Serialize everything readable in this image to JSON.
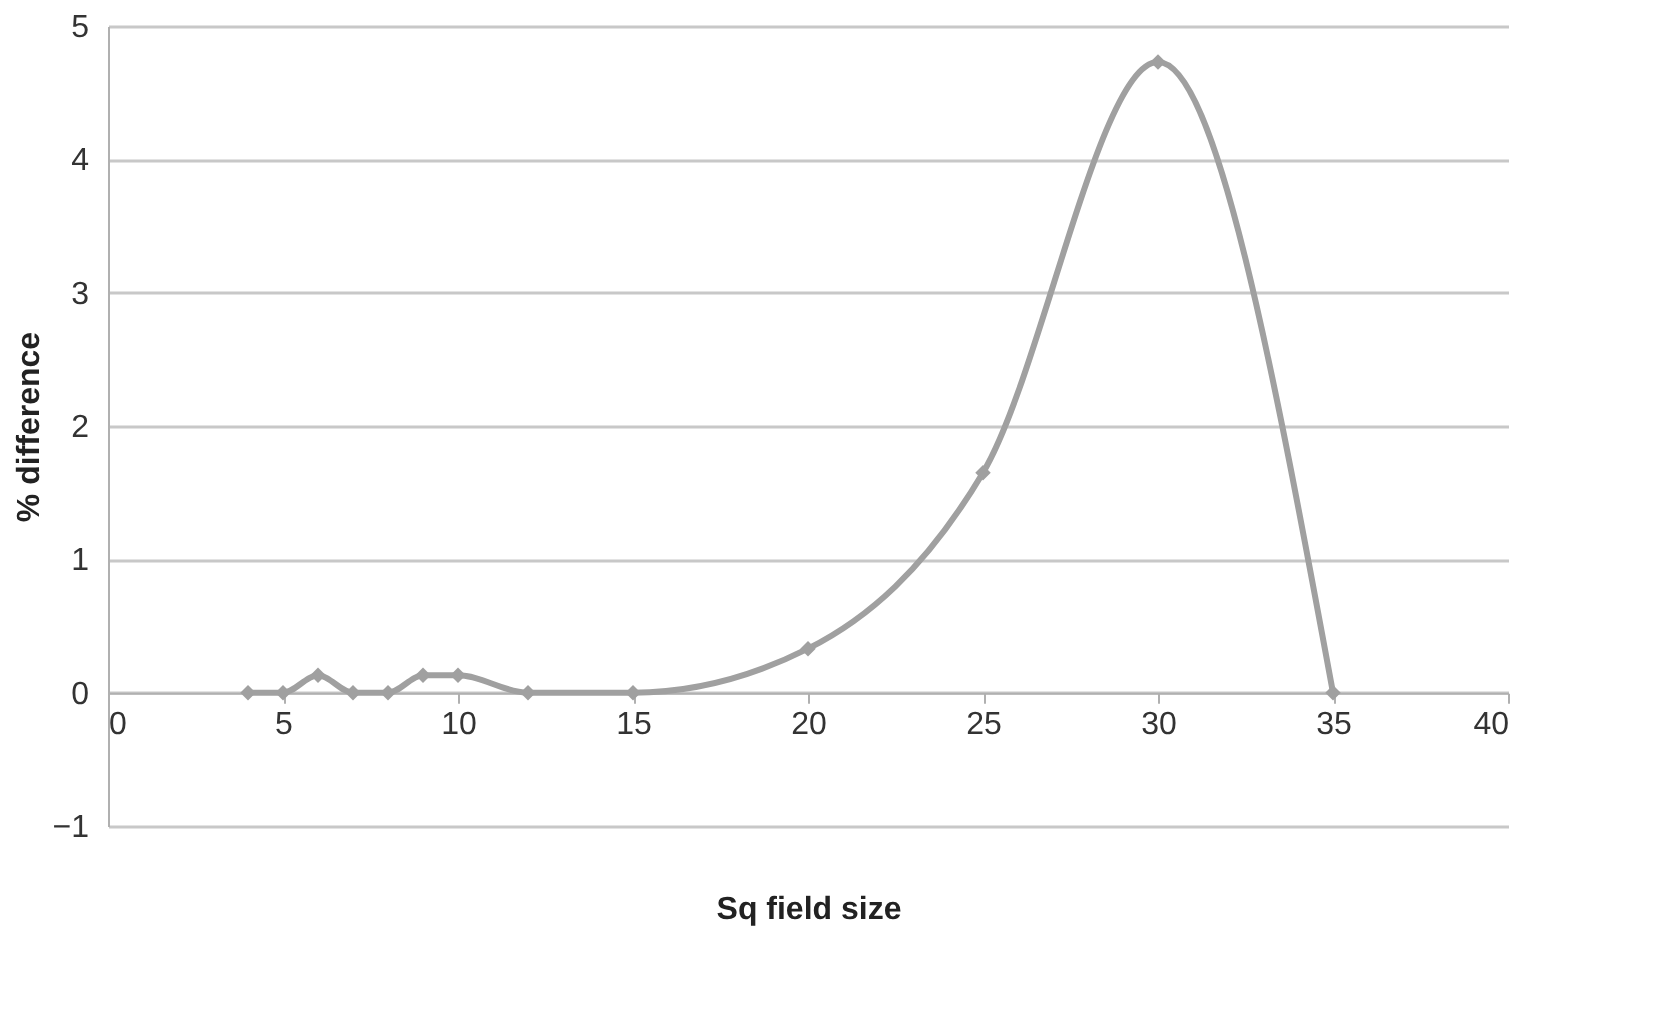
{
  "chart_data": {
    "type": "line",
    "xlabel": "Sq field size",
    "ylabel": "% difference",
    "x": [
      4,
      5,
      6,
      7,
      8,
      9,
      10,
      12,
      15,
      20,
      25,
      30,
      35
    ],
    "series": [
      {
        "color": "#a0a0a0",
        "values": [
          0,
          0,
          0.13,
          0,
          0,
          0.13,
          0.13,
          0,
          0,
          0.33,
          1.65,
          4.73,
          0
        ]
      }
    ],
    "xlim": [
      0,
      40
    ],
    "xticks": [
      0,
      5,
      10,
      15,
      20,
      25,
      30,
      35,
      40
    ],
    "ylim": [
      -1,
      5
    ],
    "yticks": [
      -1,
      0,
      1,
      2,
      3,
      4,
      5
    ],
    "grid": "y",
    "marker": "diamond",
    "line_style": "solid"
  }
}
